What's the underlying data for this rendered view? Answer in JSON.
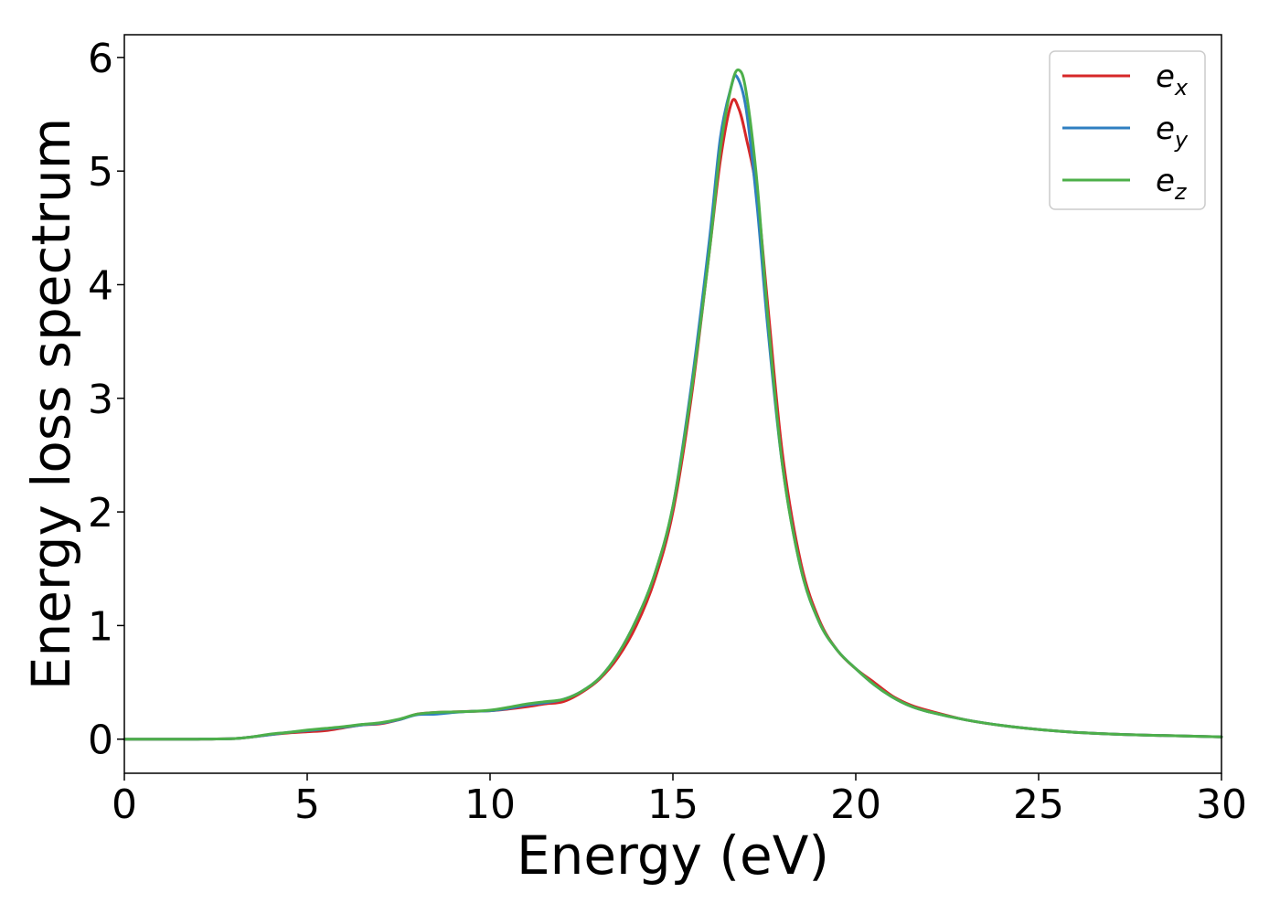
{
  "chart_data": {
    "type": "line",
    "xlabel": "Energy (eV)",
    "ylabel": "Energy loss spectrum",
    "xlim": [
      0,
      30
    ],
    "ylim": [
      -0.3,
      6.2
    ],
    "xticks": [
      0,
      5,
      10,
      15,
      20,
      25,
      30
    ],
    "yticks": [
      0,
      1,
      2,
      3,
      4,
      5,
      6
    ],
    "grid": false,
    "legend_position": "top-right",
    "series": [
      {
        "name": "e",
        "subscript": "x",
        "color": "#d62728",
        "points": [
          [
            0,
            0
          ],
          [
            1,
            0
          ],
          [
            2,
            0
          ],
          [
            3,
            0.005
          ],
          [
            3.5,
            0.02
          ],
          [
            4,
            0.04
          ],
          [
            4.5,
            0.055
          ],
          [
            5,
            0.065
          ],
          [
            5.5,
            0.075
          ],
          [
            6,
            0.1
          ],
          [
            6.5,
            0.125
          ],
          [
            7,
            0.135
          ],
          [
            7.5,
            0.17
          ],
          [
            8,
            0.22
          ],
          [
            8.5,
            0.235
          ],
          [
            9,
            0.24
          ],
          [
            9.5,
            0.245
          ],
          [
            10,
            0.25
          ],
          [
            10.5,
            0.265
          ],
          [
            11,
            0.285
          ],
          [
            11.5,
            0.31
          ],
          [
            12,
            0.33
          ],
          [
            12.5,
            0.41
          ],
          [
            13,
            0.53
          ],
          [
            13.5,
            0.72
          ],
          [
            14,
            1.0
          ],
          [
            14.5,
            1.4
          ],
          [
            15,
            2.0
          ],
          [
            15.5,
            3.0
          ],
          [
            16,
            4.3
          ],
          [
            16.3,
            5.1
          ],
          [
            16.6,
            5.6
          ],
          [
            16.8,
            5.55
          ],
          [
            17,
            5.3
          ],
          [
            17.3,
            4.8
          ],
          [
            17.6,
            3.8
          ],
          [
            18,
            2.5
          ],
          [
            18.5,
            1.55
          ],
          [
            19,
            1.05
          ],
          [
            19.5,
            0.78
          ],
          [
            20,
            0.62
          ],
          [
            20.5,
            0.5
          ],
          [
            21,
            0.38
          ],
          [
            21.5,
            0.3
          ],
          [
            22,
            0.25
          ],
          [
            23,
            0.17
          ],
          [
            24,
            0.12
          ],
          [
            25,
            0.085
          ],
          [
            26,
            0.06
          ],
          [
            27,
            0.045
          ],
          [
            28,
            0.035
          ],
          [
            29,
            0.028
          ],
          [
            30,
            0.02
          ]
        ]
      },
      {
        "name": "e",
        "subscript": "y",
        "color": "#2f7fc1",
        "points": [
          [
            0,
            0
          ],
          [
            1,
            0
          ],
          [
            2,
            0
          ],
          [
            3,
            0.005
          ],
          [
            3.5,
            0.02
          ],
          [
            4,
            0.04
          ],
          [
            4.5,
            0.06
          ],
          [
            5,
            0.075
          ],
          [
            5.5,
            0.09
          ],
          [
            6,
            0.105
          ],
          [
            6.5,
            0.125
          ],
          [
            7,
            0.14
          ],
          [
            7.5,
            0.17
          ],
          [
            8,
            0.215
          ],
          [
            8.5,
            0.22
          ],
          [
            9,
            0.235
          ],
          [
            9.5,
            0.245
          ],
          [
            10,
            0.25
          ],
          [
            10.5,
            0.27
          ],
          [
            11,
            0.3
          ],
          [
            11.5,
            0.32
          ],
          [
            12,
            0.35
          ],
          [
            12.5,
            0.42
          ],
          [
            13,
            0.54
          ],
          [
            13.5,
            0.75
          ],
          [
            14,
            1.05
          ],
          [
            14.5,
            1.45
          ],
          [
            15,
            2.05
          ],
          [
            15.5,
            3.1
          ],
          [
            16,
            4.4
          ],
          [
            16.3,
            5.3
          ],
          [
            16.6,
            5.75
          ],
          [
            16.75,
            5.83
          ],
          [
            17,
            5.55
          ],
          [
            17.3,
            4.7
          ],
          [
            17.6,
            3.6
          ],
          [
            18,
            2.4
          ],
          [
            18.5,
            1.5
          ],
          [
            19,
            1.03
          ],
          [
            19.5,
            0.78
          ],
          [
            20,
            0.62
          ],
          [
            20.5,
            0.48
          ],
          [
            21,
            0.37
          ],
          [
            21.5,
            0.29
          ],
          [
            22,
            0.24
          ],
          [
            23,
            0.17
          ],
          [
            24,
            0.12
          ],
          [
            25,
            0.085
          ],
          [
            26,
            0.06
          ],
          [
            27,
            0.045
          ],
          [
            28,
            0.035
          ],
          [
            29,
            0.028
          ],
          [
            30,
            0.02
          ]
        ]
      },
      {
        "name": "e",
        "subscript": "z",
        "color": "#4daf4a",
        "points": [
          [
            0,
            0
          ],
          [
            1,
            0
          ],
          [
            2,
            0
          ],
          [
            3,
            0.005
          ],
          [
            3.5,
            0.02
          ],
          [
            4,
            0.045
          ],
          [
            4.5,
            0.06
          ],
          [
            5,
            0.08
          ],
          [
            5.5,
            0.095
          ],
          [
            6,
            0.11
          ],
          [
            6.5,
            0.13
          ],
          [
            7,
            0.145
          ],
          [
            7.5,
            0.175
          ],
          [
            8,
            0.22
          ],
          [
            8.5,
            0.235
          ],
          [
            9,
            0.24
          ],
          [
            9.5,
            0.245
          ],
          [
            10,
            0.255
          ],
          [
            10.5,
            0.28
          ],
          [
            11,
            0.31
          ],
          [
            11.5,
            0.33
          ],
          [
            12,
            0.35
          ],
          [
            12.5,
            0.42
          ],
          [
            13,
            0.54
          ],
          [
            13.5,
            0.75
          ],
          [
            14,
            1.05
          ],
          [
            14.5,
            1.45
          ],
          [
            15,
            2.05
          ],
          [
            15.5,
            3.05
          ],
          [
            16,
            4.3
          ],
          [
            16.3,
            5.2
          ],
          [
            16.6,
            5.75
          ],
          [
            16.8,
            5.89
          ],
          [
            17,
            5.7
          ],
          [
            17.3,
            4.9
          ],
          [
            17.6,
            3.7
          ],
          [
            18,
            2.4
          ],
          [
            18.5,
            1.5
          ],
          [
            19,
            1.03
          ],
          [
            19.5,
            0.78
          ],
          [
            20,
            0.62
          ],
          [
            20.5,
            0.48
          ],
          [
            21,
            0.37
          ],
          [
            21.5,
            0.29
          ],
          [
            22,
            0.24
          ],
          [
            23,
            0.17
          ],
          [
            24,
            0.12
          ],
          [
            25,
            0.085
          ],
          [
            26,
            0.06
          ],
          [
            27,
            0.045
          ],
          [
            28,
            0.035
          ],
          [
            29,
            0.028
          ],
          [
            30,
            0.02
          ]
        ]
      }
    ]
  }
}
